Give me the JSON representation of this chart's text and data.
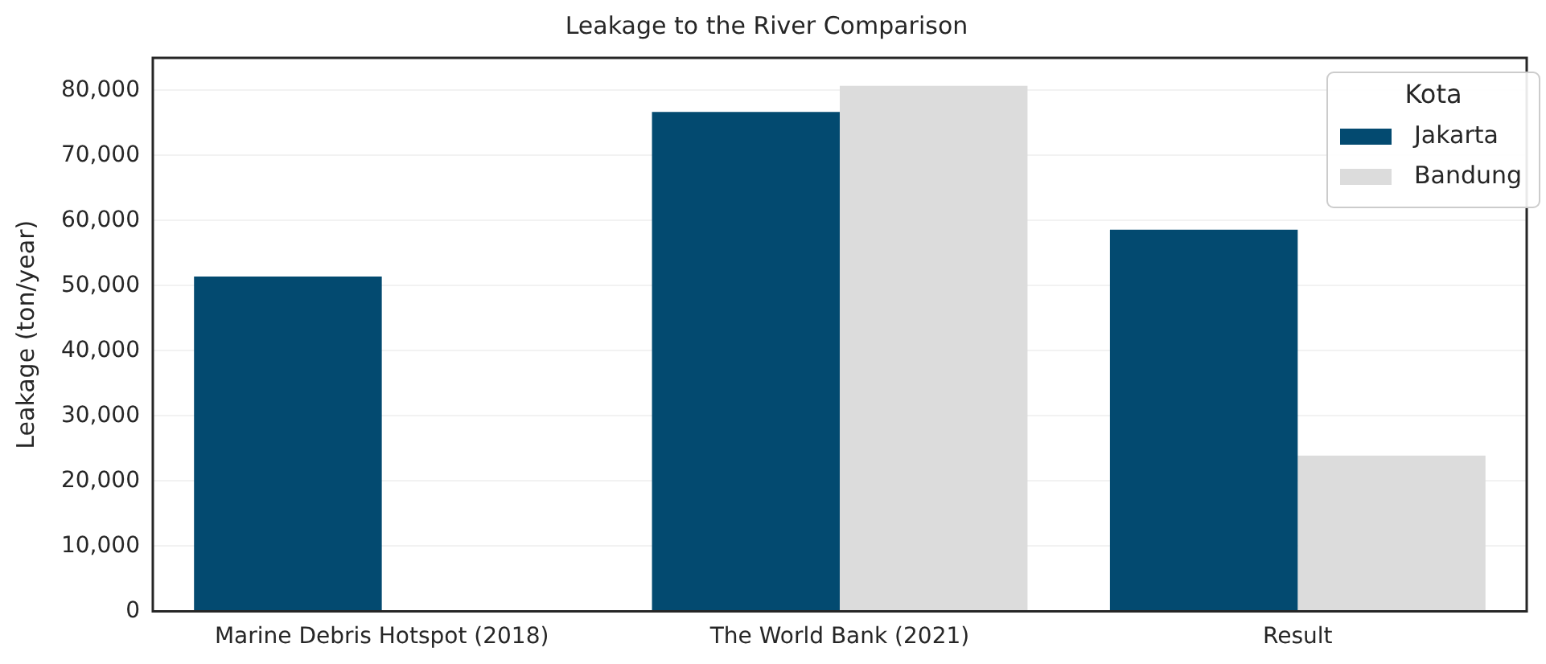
{
  "chart_data": {
    "type": "bar",
    "title": "Leakage to the River Comparison",
    "ylabel": "Leakage (ton/year)",
    "legend_title": "Kota",
    "categories": [
      "Marine Debris Hotspot (2018)",
      "The World Bank (2021)",
      "Result"
    ],
    "series": [
      {
        "name": "Jakarta",
        "color": "#034a70",
        "values": [
          51400,
          76700,
          58600
        ]
      },
      {
        "name": "Bandung",
        "color": "#dcdcdc",
        "values": [
          null,
          80700,
          23900
        ]
      }
    ],
    "ylim": [
      0,
      85000
    ],
    "yticks": [
      {
        "value": 0,
        "label": "0"
      },
      {
        "value": 10000,
        "label": "10,000"
      },
      {
        "value": 20000,
        "label": "20,000"
      },
      {
        "value": 30000,
        "label": "30,000"
      },
      {
        "value": 40000,
        "label": "40,000"
      },
      {
        "value": 50000,
        "label": "50,000"
      },
      {
        "value": 60000,
        "label": "60,000"
      },
      {
        "value": 70000,
        "label": "70,000"
      },
      {
        "value": 80000,
        "label": "80,000"
      }
    ],
    "grid": "y",
    "legend": "top right"
  }
}
